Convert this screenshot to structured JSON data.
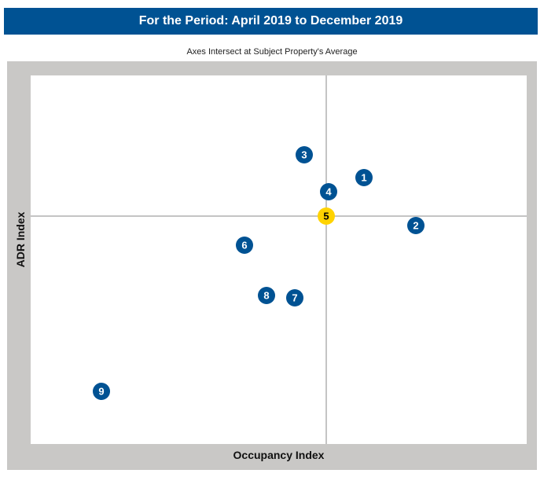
{
  "header": {
    "title": "For the Period: April 2019 to December 2019"
  },
  "chart_data": {
    "type": "scatter",
    "subtitle": "Axes Intersect at Subject Property's Average",
    "xlabel": "Occupancy Index",
    "ylabel": "ADR Index",
    "xlim": [
      0,
      631
    ],
    "ylim": [
      0,
      469
    ],
    "center": {
      "x": 376,
      "y": 290
    },
    "grid": false,
    "points": [
      {
        "label": "1",
        "x": 424,
        "y": 339
      },
      {
        "label": "2",
        "x": 490,
        "y": 278
      },
      {
        "label": "3",
        "x": 348,
        "y": 368
      },
      {
        "label": "4",
        "x": 379,
        "y": 321
      },
      {
        "label": "5",
        "x": 376,
        "y": 290,
        "highlight": true
      },
      {
        "label": "6",
        "x": 272,
        "y": 253
      },
      {
        "label": "7",
        "x": 336,
        "y": 186
      },
      {
        "label": "8",
        "x": 300,
        "y": 189
      },
      {
        "label": "9",
        "x": 90,
        "y": 67
      }
    ],
    "colors": {
      "marker": "#005293",
      "highlight": "#ffd300",
      "marker_text": "#ffffff",
      "highlight_text": "#000000"
    }
  }
}
